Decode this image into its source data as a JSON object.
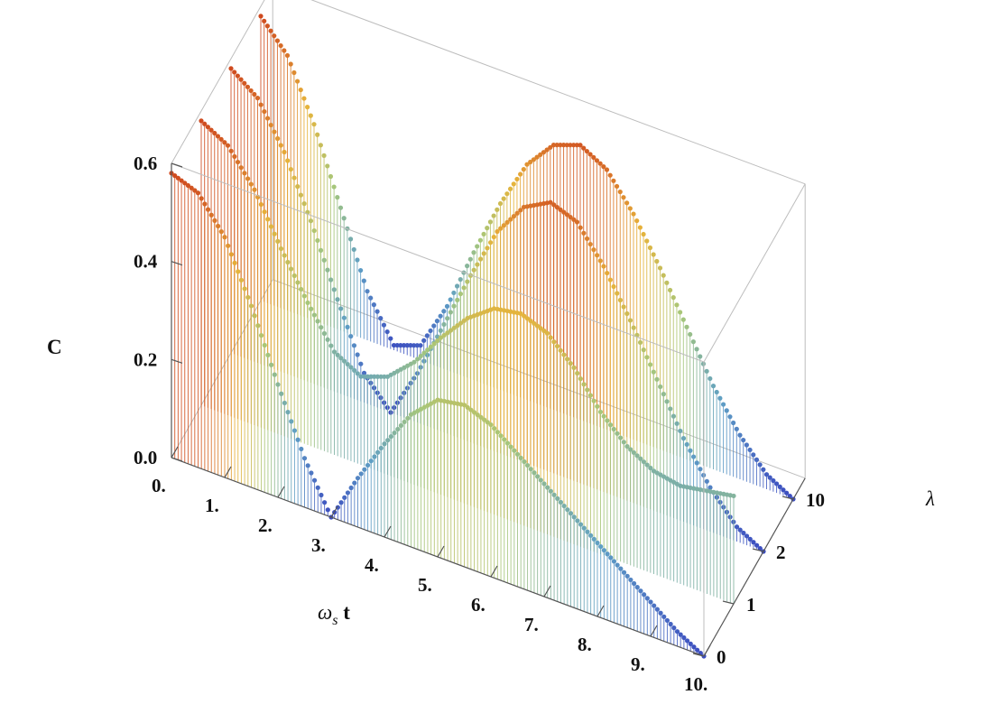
{
  "chart_data": {
    "type": "3d-stem",
    "title": "",
    "xlabel": "ω",
    "xlabel_sub": "s",
    "xlabel_tail": " t",
    "ylabel": "λ",
    "zlabel": "C",
    "xlim": [
      0,
      10
    ],
    "zlim": [
      0,
      0.6
    ],
    "x_ticks": [
      "0.",
      "1.",
      "2.",
      "3.",
      "4.",
      "5.",
      "6.",
      "7.",
      "8.",
      "9.",
      "10."
    ],
    "y_ticks": [
      "0",
      "1",
      "2",
      "10"
    ],
    "z_ticks": [
      "0.0",
      "0.2",
      "0.4",
      "0.6"
    ],
    "series": [
      {
        "lambda_label": "0",
        "x": [
          0,
          0.5,
          1,
          1.5,
          2,
          2.5,
          3,
          3.5,
          4,
          4.5,
          5,
          5.5,
          6,
          6.5,
          7,
          7.5,
          8,
          8.5,
          9,
          9.5,
          10
        ],
        "values": [
          0.58,
          0.56,
          0.49,
          0.37,
          0.23,
          0.1,
          0,
          0.1,
          0.19,
          0.27,
          0.32,
          0.33,
          0.31,
          0.27,
          0.23,
          0.19,
          0.15,
          0.11,
          0.07,
          0.03,
          0
        ]
      },
      {
        "lambda_label": "1",
        "x": [
          0,
          0.5,
          1,
          1.5,
          2,
          2.5,
          3,
          3.5,
          4,
          4.5,
          5,
          5.5,
          6,
          6.5,
          7,
          7.5,
          8,
          8.5,
          9,
          9.5,
          10
        ],
        "values": [
          0.58,
          0.55,
          0.48,
          0.38,
          0.29,
          0.21,
          0.18,
          0.2,
          0.25,
          0.32,
          0.38,
          0.42,
          0.43,
          0.41,
          0.36,
          0.29,
          0.24,
          0.21,
          0.2,
          0.21,
          0.22
        ]
      },
      {
        "lambda_label": "2",
        "x": [
          0,
          0.5,
          1,
          1.5,
          2,
          2.5,
          3,
          3.5,
          4,
          4.5,
          5,
          5.5,
          6,
          6.5,
          7,
          7.5,
          8,
          8.5,
          9,
          9.5,
          10
        ],
        "values": [
          0.58,
          0.54,
          0.45,
          0.33,
          0.19,
          0.06,
          0,
          0.1,
          0.22,
          0.34,
          0.45,
          0.52,
          0.55,
          0.53,
          0.46,
          0.37,
          0.27,
          0.17,
          0.09,
          0.03,
          0
        ]
      },
      {
        "lambda_label": "10",
        "x": [
          0,
          0.5,
          1,
          1.5,
          2,
          2.5,
          3,
          3.5,
          4,
          4.5,
          5,
          5.5,
          6,
          6.5,
          7,
          7.5,
          8,
          8.5,
          9,
          9.5,
          10
        ],
        "values": [
          0.58,
          0.52,
          0.4,
          0.25,
          0.1,
          0.01,
          0.03,
          0.13,
          0.26,
          0.38,
          0.48,
          0.54,
          0.56,
          0.53,
          0.46,
          0.37,
          0.27,
          0.17,
          0.09,
          0.03,
          0
        ]
      }
    ],
    "grid": false,
    "legend": "none",
    "color_scheme": [
      "#3b4cc0",
      "#5f9fc5",
      "#a7c77a",
      "#e7b33a",
      "#cf4a1f"
    ]
  }
}
